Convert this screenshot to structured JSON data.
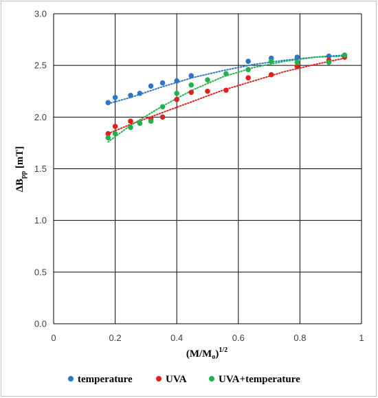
{
  "chart_data": {
    "type": "scatter",
    "xlabel": {
      "main": "(M/M",
      "sub": "o",
      "tail": ")",
      "sup": "1/2"
    },
    "ylabel": {
      "main": "ΔB",
      "sub": "pp",
      "tail": " [mT]"
    },
    "xlim": [
      0,
      1
    ],
    "ylim": [
      0,
      3
    ],
    "xticks": [
      "0",
      "0.2",
      "0.4",
      "0.6",
      "0.8",
      "1"
    ],
    "yticks": [
      "0.0",
      "0.5",
      "1.0",
      "1.5",
      "2.0",
      "2.5",
      "3.0"
    ],
    "xtick_values": [
      0,
      0.2,
      0.4,
      0.6,
      0.8,
      1
    ],
    "ytick_values": [
      0,
      0.5,
      1.0,
      1.5,
      2.0,
      2.5,
      3.0
    ],
    "grid": true,
    "legend_position": "bottom",
    "series": [
      {
        "name": "temperature",
        "color": "#2e75c6",
        "x": [
          0.177,
          0.2,
          0.25,
          0.28,
          0.316,
          0.354,
          0.4,
          0.447,
          0.632,
          0.707,
          0.791,
          0.894,
          0.945
        ],
        "y": [
          2.14,
          2.19,
          2.21,
          2.23,
          2.3,
          2.33,
          2.35,
          2.4,
          2.54,
          2.57,
          2.58,
          2.59,
          2.6
        ],
        "trend": [
          [
            0.177,
            2.13
          ],
          [
            0.25,
            2.19
          ],
          [
            0.35,
            2.29
          ],
          [
            0.45,
            2.38
          ],
          [
            0.55,
            2.45
          ],
          [
            0.65,
            2.51
          ],
          [
            0.75,
            2.55
          ],
          [
            0.85,
            2.58
          ],
          [
            0.945,
            2.6
          ]
        ]
      },
      {
        "name": "UVA",
        "color": "#e0201b",
        "x": [
          0.177,
          0.2,
          0.25,
          0.316,
          0.354,
          0.4,
          0.447,
          0.5,
          0.56,
          0.632,
          0.707,
          0.791,
          0.894,
          0.945
        ],
        "y": [
          1.84,
          1.91,
          1.96,
          1.98,
          2.0,
          2.17,
          2.24,
          2.25,
          2.26,
          2.38,
          2.41,
          2.49,
          2.55,
          2.58
        ],
        "trend": [
          [
            0.177,
            1.84
          ],
          [
            0.25,
            1.93
          ],
          [
            0.35,
            2.04
          ],
          [
            0.45,
            2.15
          ],
          [
            0.55,
            2.26
          ],
          [
            0.65,
            2.35
          ],
          [
            0.75,
            2.44
          ],
          [
            0.85,
            2.51
          ],
          [
            0.945,
            2.57
          ]
        ]
      },
      {
        "name": "UVA+temperature",
        "color": "#22b14c",
        "x": [
          0.177,
          0.2,
          0.25,
          0.28,
          0.316,
          0.354,
          0.4,
          0.447,
          0.5,
          0.56,
          0.632,
          0.707,
          0.791,
          0.894,
          0.945
        ],
        "y": [
          1.8,
          1.84,
          1.9,
          1.94,
          1.96,
          2.1,
          2.23,
          2.31,
          2.36,
          2.42,
          2.46,
          2.54,
          2.53,
          2.53,
          2.6
        ],
        "trend": [
          [
            0.177,
            1.76
          ],
          [
            0.25,
            1.92
          ],
          [
            0.35,
            2.1
          ],
          [
            0.45,
            2.26
          ],
          [
            0.55,
            2.39
          ],
          [
            0.65,
            2.48
          ],
          [
            0.75,
            2.54
          ],
          [
            0.85,
            2.58
          ],
          [
            0.945,
            2.59
          ]
        ]
      }
    ]
  }
}
